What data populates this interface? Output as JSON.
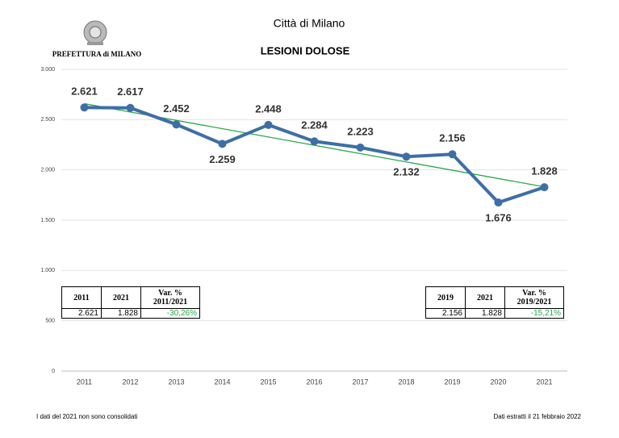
{
  "header": {
    "city": "Città di Milano",
    "office": "PREFETTURA di MILANO"
  },
  "chart_data": {
    "type": "line",
    "title": "LESIONI DOLOSE",
    "categories": [
      "2011",
      "2012",
      "2013",
      "2014",
      "2015",
      "2016",
      "2017",
      "2018",
      "2019",
      "2020",
      "2021"
    ],
    "series": [
      {
        "color": "#3e6ea6",
        "values": [
          2621,
          2617,
          2452,
          2259,
          2448,
          2284,
          2223,
          2132,
          2156,
          1676,
          1828
        ],
        "value_labels": [
          "2.621",
          "2.617",
          "2.452",
          "2.259",
          "2.448",
          "2.284",
          "2.223",
          "2.132",
          "2.156",
          "1.676",
          "1.828"
        ]
      }
    ],
    "trendline": true,
    "trendline_color": "#2aa84a",
    "ylim": [
      0,
      3000
    ],
    "yticks": [
      0,
      500,
      {
        "value": 1000,
        "label": "1.000"
      },
      {
        "value": 1500,
        "label": "1.500"
      },
      {
        "value": 2000,
        "label": "2.000"
      },
      {
        "value": 2500,
        "label": "2.500"
      },
      {
        "value": 3000,
        "label": "3.000"
      }
    ],
    "grid": true
  },
  "tables": [
    {
      "columns": [
        "2011",
        "2021"
      ],
      "var_label": "Var. %",
      "var_period": "2011/2021",
      "values": [
        "2.621",
        "1.828",
        "-30,26%"
      ]
    },
    {
      "columns": [
        "2019",
        "2021"
      ],
      "var_label": "Var. %",
      "var_period": "2019/2021",
      "values": [
        "2.156",
        "1.828",
        "-15,21%"
      ]
    }
  ],
  "footer": {
    "note": "I dati del 2021 non sono consolidati",
    "source": "Dati estratti il 21 febbraio 2022"
  }
}
